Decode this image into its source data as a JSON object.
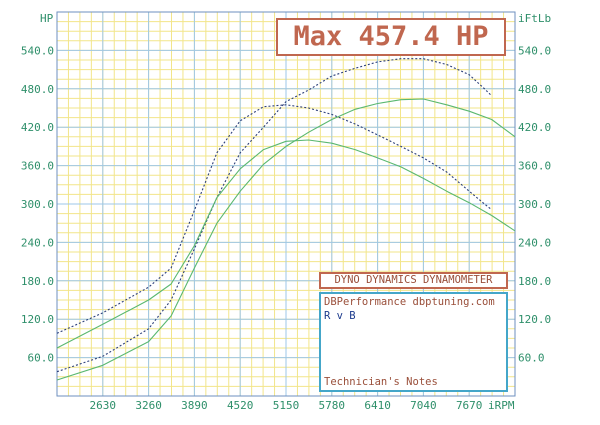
{
  "chart_data": {
    "type": "line",
    "left_axis_unit": "HP",
    "right_axis_unit": "iFtLb",
    "x_axis_unit": "iRPM",
    "x_ticks": [
      2630,
      3260,
      3890,
      4520,
      5150,
      5780,
      6410,
      7040,
      7670
    ],
    "x_tick_labels": [
      "2630",
      "3260",
      "3890",
      "4520",
      "5150",
      "5780",
      "6410",
      "7040",
      "7670"
    ],
    "xlim": [
      2000,
      8300
    ],
    "y_ticks": [
      60,
      120,
      180,
      240,
      300,
      360,
      420,
      480,
      540
    ],
    "y_tick_labels": [
      "60.0",
      "120.0",
      "180.0",
      "240.0",
      "300.0",
      "360.0",
      "420.0",
      "480.0",
      "540.0"
    ],
    "ylim": [
      0,
      600
    ],
    "grid": true,
    "series": [
      {
        "color": "#2c3f7a",
        "dash": "2,2",
        "points": [
          [
            2000,
            38
          ],
          [
            2630,
            62
          ],
          [
            3260,
            105
          ],
          [
            3570,
            150
          ],
          [
            3890,
            230
          ],
          [
            4200,
            310
          ],
          [
            4520,
            380
          ],
          [
            4840,
            420
          ],
          [
            5150,
            460
          ],
          [
            5460,
            478
          ],
          [
            5780,
            500
          ],
          [
            6100,
            512
          ],
          [
            6410,
            522
          ],
          [
            6730,
            527
          ],
          [
            7040,
            527
          ],
          [
            7360,
            518
          ],
          [
            7670,
            502
          ],
          [
            7880,
            480
          ],
          [
            7970,
            470
          ]
        ]
      },
      {
        "color": "#2c3f7a",
        "dash": "2,2",
        "points": [
          [
            2000,
            98
          ],
          [
            2630,
            130
          ],
          [
            3260,
            170
          ],
          [
            3570,
            200
          ],
          [
            3890,
            290
          ],
          [
            4200,
            380
          ],
          [
            4520,
            430
          ],
          [
            4840,
            452
          ],
          [
            5150,
            455
          ],
          [
            5460,
            450
          ],
          [
            5780,
            440
          ],
          [
            6100,
            425
          ],
          [
            6410,
            408
          ],
          [
            6730,
            390
          ],
          [
            7040,
            372
          ],
          [
            7360,
            350
          ],
          [
            7670,
            320
          ],
          [
            7880,
            300
          ],
          [
            7970,
            292
          ]
        ]
      },
      {
        "color": "#5ab870",
        "dash": "",
        "points": [
          [
            2000,
            25
          ],
          [
            2630,
            48
          ],
          [
            3260,
            85
          ],
          [
            3570,
            125
          ],
          [
            3890,
            200
          ],
          [
            4200,
            270
          ],
          [
            4520,
            320
          ],
          [
            4840,
            362
          ],
          [
            5150,
            390
          ],
          [
            5460,
            412
          ],
          [
            5780,
            432
          ],
          [
            6100,
            448
          ],
          [
            6410,
            457
          ],
          [
            6730,
            463
          ],
          [
            7040,
            464
          ],
          [
            7360,
            455
          ],
          [
            7670,
            445
          ],
          [
            7980,
            432
          ],
          [
            8300,
            405
          ]
        ]
      },
      {
        "color": "#5ab870",
        "dash": "",
        "points": [
          [
            2000,
            75
          ],
          [
            2630,
            112
          ],
          [
            3260,
            150
          ],
          [
            3570,
            175
          ],
          [
            3890,
            235
          ],
          [
            4200,
            310
          ],
          [
            4520,
            355
          ],
          [
            4840,
            385
          ],
          [
            5150,
            398
          ],
          [
            5460,
            400
          ],
          [
            5780,
            395
          ],
          [
            6100,
            385
          ],
          [
            6410,
            372
          ],
          [
            6730,
            358
          ],
          [
            7040,
            340
          ],
          [
            7360,
            320
          ],
          [
            7670,
            302
          ],
          [
            7980,
            282
          ],
          [
            8300,
            258
          ]
        ]
      }
    ]
  },
  "max_label": "Max 457.4 HP",
  "brand_title": "DYNO DYNAMICS DYNAMOMETER",
  "shop_line": "DBPerformance dbptuning.com",
  "run_label": "R v B",
  "notes_label": "Technician's Notes"
}
